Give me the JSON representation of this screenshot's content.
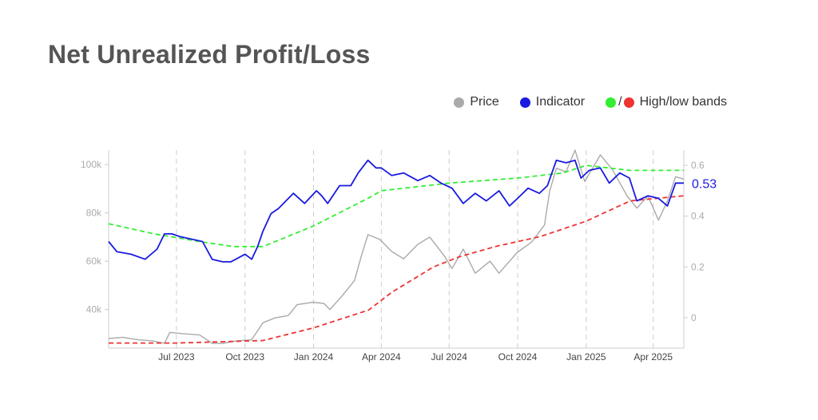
{
  "title": "Net Unrealized Profit/Loss",
  "legend": {
    "price": {
      "label": "Price",
      "color": "#aaaaaa"
    },
    "indicator": {
      "label": "Indicator",
      "color": "#1a1ae0"
    },
    "bands": {
      "label": "High/low bands",
      "slash": "/",
      "high_color": "#33ee33",
      "low_color": "#ee3333"
    }
  },
  "chart_data": {
    "type": "line",
    "x_ticks": [
      "Jul 2023",
      "Oct 2023",
      "Jan 2024",
      "Apr 2024",
      "Jul 2024",
      "Oct 2024",
      "Jan 2025",
      "Apr 2025"
    ],
    "y_left_ticks": [
      "40k",
      "60k",
      "80k",
      "100k"
    ],
    "y_right_ticks": [
      "0",
      "0.2",
      "0.4",
      "0.6"
    ],
    "y_left_range": [
      24000,
      106000
    ],
    "y_right_range": [
      -0.12,
      0.66
    ],
    "x_range": [
      "2023-04-01",
      "2025-05-12"
    ],
    "last_indicator_label": "0.53",
    "grid": "vertical dashed",
    "legend_position": "top-right",
    "series": [
      {
        "name": "Price",
        "axis": "left",
        "color": "#aaaaaa",
        "x": [
          "2023-04-01",
          "2023-04-20",
          "2023-05-10",
          "2023-05-30",
          "2023-06-15",
          "2023-06-22",
          "2023-07-10",
          "2023-08-01",
          "2023-08-18",
          "2023-09-01",
          "2023-09-20",
          "2023-10-10",
          "2023-10-25",
          "2023-11-10",
          "2023-11-28",
          "2023-12-10",
          "2023-12-31",
          "2024-01-15",
          "2024-01-23",
          "2024-02-08",
          "2024-02-25",
          "2024-03-05",
          "2024-03-14",
          "2024-03-30",
          "2024-04-15",
          "2024-05-01",
          "2024-05-20",
          "2024-06-05",
          "2024-06-25",
          "2024-07-05",
          "2024-07-20",
          "2024-08-05",
          "2024-08-25",
          "2024-09-06",
          "2024-09-30",
          "2024-10-20",
          "2024-11-06",
          "2024-11-13",
          "2024-11-22",
          "2024-12-05",
          "2024-12-17",
          "2024-12-30",
          "2025-01-20",
          "2025-02-05",
          "2025-02-25",
          "2025-03-10",
          "2025-03-25",
          "2025-04-08",
          "2025-04-20",
          "2025-05-01",
          "2025-05-12"
        ],
        "y": [
          28000,
          28500,
          27500,
          27000,
          26000,
          30500,
          30000,
          29500,
          26000,
          26000,
          27000,
          27500,
          34500,
          36500,
          37500,
          42000,
          43000,
          42500,
          40000,
          45500,
          52000,
          62000,
          71000,
          69000,
          64000,
          61000,
          67000,
          70000,
          62000,
          57000,
          65000,
          55000,
          60000,
          55000,
          63500,
          68000,
          75000,
          89000,
          98500,
          97000,
          106000,
          93000,
          104000,
          98000,
          87000,
          82000,
          87000,
          77000,
          85000,
          95000,
          94000
        ]
      },
      {
        "name": "Indicator",
        "axis": "right",
        "color": "#1a1ae0",
        "x": [
          "2023-04-01",
          "2023-04-12",
          "2023-05-01",
          "2023-05-20",
          "2023-06-05",
          "2023-06-15",
          "2023-06-25",
          "2023-07-05",
          "2023-07-20",
          "2023-08-05",
          "2023-08-18",
          "2023-09-01",
          "2023-09-12",
          "2023-10-01",
          "2023-10-10",
          "2023-10-18",
          "2023-10-25",
          "2023-11-05",
          "2023-11-15",
          "2023-12-05",
          "2023-12-20",
          "2024-01-05",
          "2024-01-12",
          "2024-01-20",
          "2024-02-05",
          "2024-02-20",
          "2024-03-01",
          "2024-03-14",
          "2024-03-25",
          "2024-04-01",
          "2024-04-15",
          "2024-05-01",
          "2024-05-20",
          "2024-06-05",
          "2024-06-20",
          "2024-07-05",
          "2024-07-20",
          "2024-08-05",
          "2024-08-20",
          "2024-09-06",
          "2024-09-20",
          "2024-10-01",
          "2024-10-15",
          "2024-10-30",
          "2024-11-10",
          "2024-11-22",
          "2024-12-05",
          "2024-12-17",
          "2024-12-25",
          "2025-01-05",
          "2025-01-20",
          "2025-02-01",
          "2025-02-15",
          "2025-02-28",
          "2025-03-10",
          "2025-03-25",
          "2025-04-08",
          "2025-04-20",
          "2025-05-01",
          "2025-05-12"
        ],
        "y": [
          0.3,
          0.26,
          0.25,
          0.23,
          0.27,
          0.33,
          0.33,
          0.32,
          0.31,
          0.3,
          0.23,
          0.22,
          0.22,
          0.25,
          0.23,
          0.28,
          0.34,
          0.41,
          0.43,
          0.49,
          0.45,
          0.5,
          0.48,
          0.45,
          0.52,
          0.52,
          0.57,
          0.62,
          0.59,
          0.59,
          0.56,
          0.57,
          0.54,
          0.56,
          0.53,
          0.51,
          0.45,
          0.49,
          0.46,
          0.5,
          0.44,
          0.47,
          0.51,
          0.49,
          0.52,
          0.62,
          0.61,
          0.62,
          0.55,
          0.58,
          0.59,
          0.53,
          0.57,
          0.55,
          0.46,
          0.48,
          0.47,
          0.44,
          0.53,
          0.53
        ]
      },
      {
        "name": "High band",
        "axis": "right",
        "color": "#33ee33",
        "x": [
          "2023-04-01",
          "2023-06-01",
          "2023-08-01",
          "2023-09-15",
          "2023-10-25",
          "2023-12-31",
          "2024-03-14",
          "2024-04-01",
          "2024-07-01",
          "2024-10-01",
          "2024-12-01",
          "2025-01-01",
          "2025-03-01",
          "2025-05-12"
        ],
        "y": [
          0.37,
          0.33,
          0.3,
          0.28,
          0.28,
          0.36,
          0.47,
          0.5,
          0.53,
          0.55,
          0.57,
          0.6,
          0.58,
          0.58
        ]
      },
      {
        "name": "Low band",
        "axis": "right",
        "color": "#ee3333",
        "x": [
          "2023-04-01",
          "2023-07-01",
          "2023-10-25",
          "2024-01-01",
          "2024-03-15",
          "2024-04-15",
          "2024-06-10",
          "2024-07-15",
          "2024-09-01",
          "2024-11-01",
          "2025-01-01",
          "2025-03-01",
          "2025-05-12"
        ],
        "y": [
          -0.1,
          -0.1,
          -0.09,
          -0.04,
          0.03,
          0.1,
          0.2,
          0.24,
          0.28,
          0.32,
          0.38,
          0.46,
          0.48
        ]
      }
    ]
  }
}
